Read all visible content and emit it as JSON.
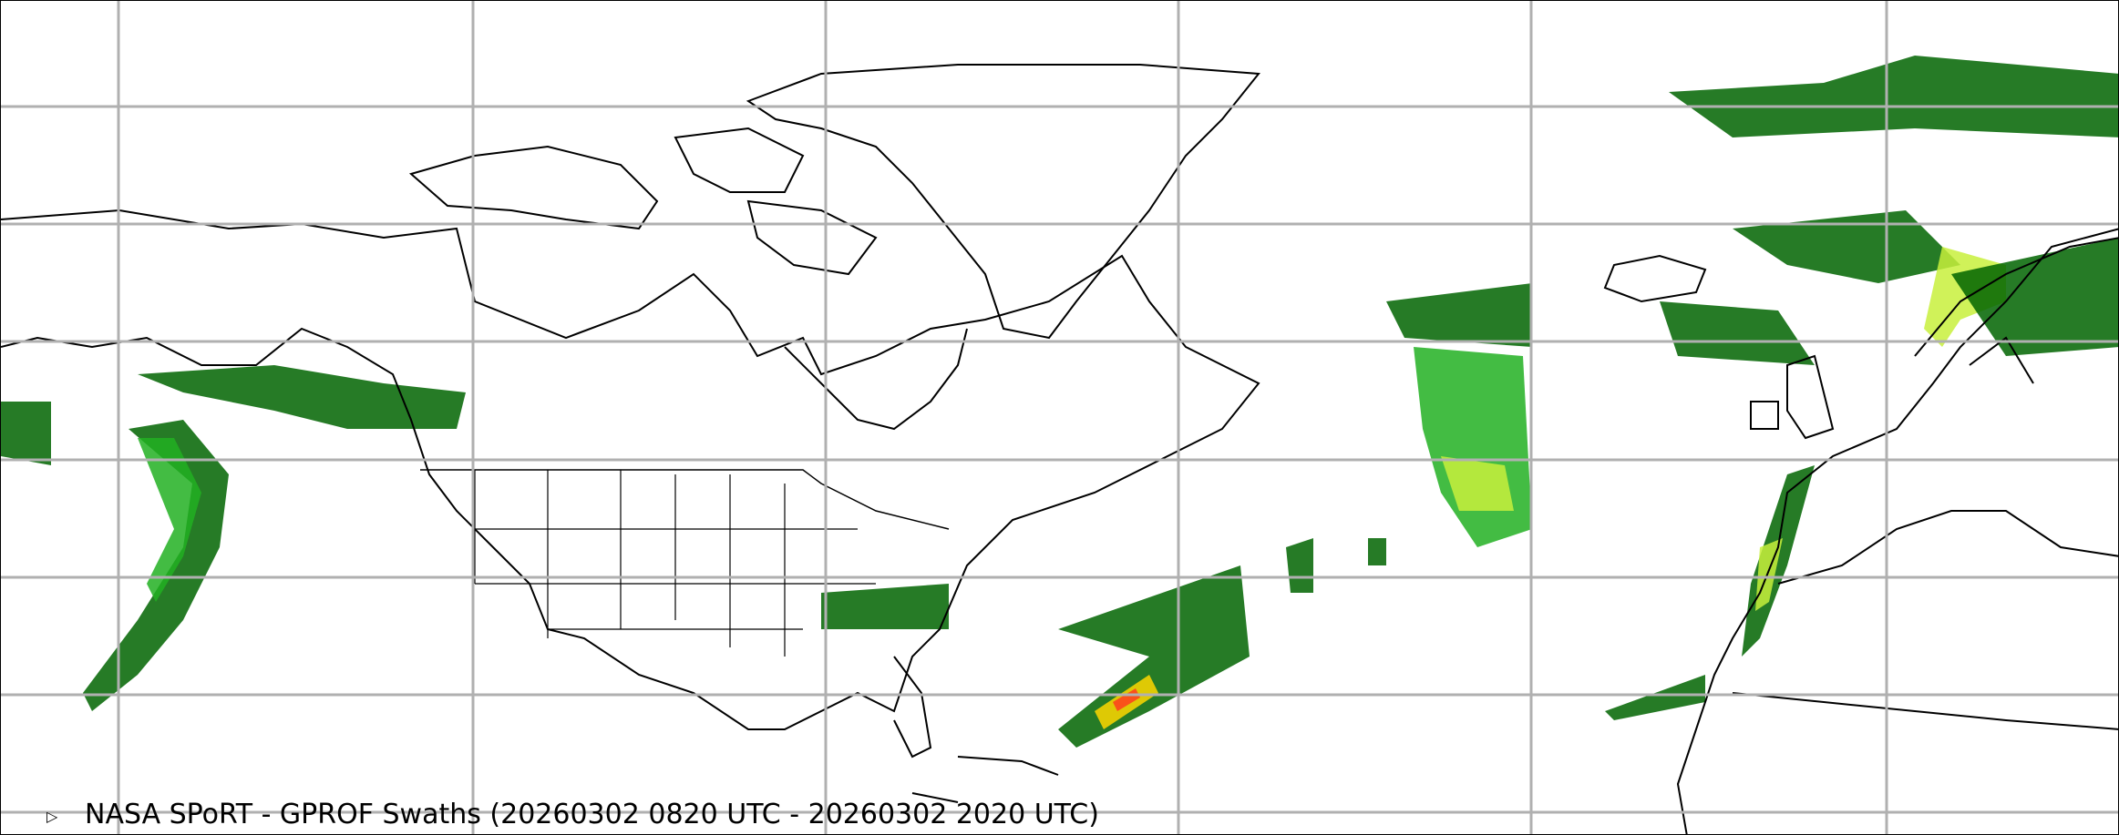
{
  "title": "NASA SPoRT - GPROF Swaths (20260302 0820 UTC - 20260302 2020 UTC)",
  "colors": {
    "background": "#ffffff",
    "grid": "#b0b0b0",
    "coastline": "#000000",
    "precip_light": "#006400",
    "precip_mid": "#22b022",
    "precip_high": "#c8f03c",
    "precip_heavy": "#ffd700",
    "precip_extreme": "#ff3c1e"
  },
  "icons": {
    "marker": "triangle-right-icon"
  }
}
